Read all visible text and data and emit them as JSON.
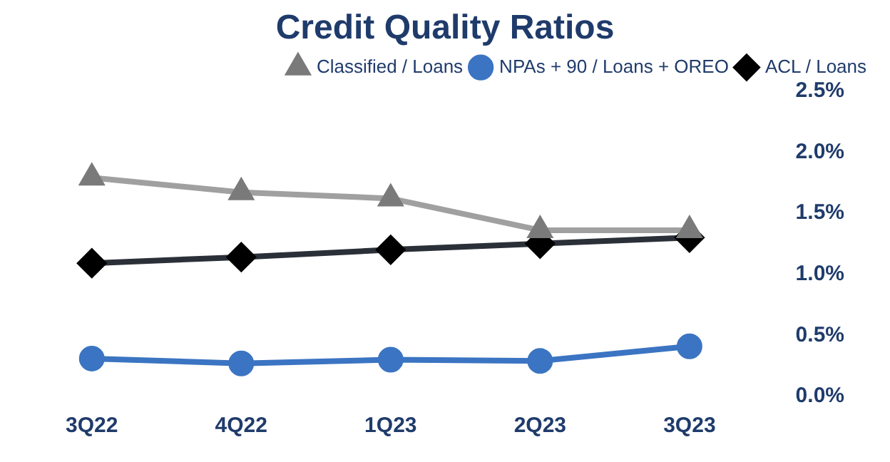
{
  "chart_data": {
    "type": "line",
    "title": "Credit Quality Ratios",
    "categories": [
      "3Q22",
      "4Q22",
      "1Q23",
      "2Q23",
      "3Q23"
    ],
    "series": [
      {
        "name": "Classified / Loans",
        "color": "#a0a0a0",
        "marker": "triangle",
        "values": [
          1.79,
          1.67,
          1.62,
          1.36,
          1.36
        ]
      },
      {
        "name": "NPAs + 90 / Loans + OREO",
        "color": "#3b74c2",
        "marker": "circle",
        "values": [
          0.31,
          0.27,
          0.3,
          0.29,
          0.41
        ]
      },
      {
        "name": "ACL / Loans",
        "color": "#2b3038",
        "marker": "diamond",
        "values": [
          1.09,
          1.14,
          1.2,
          1.25,
          1.3
        ]
      }
    ],
    "ylim": [
      0,
      2.5
    ],
    "yticks": [
      {
        "value": 0,
        "label": "0.0%"
      },
      {
        "value": 0.5,
        "label": "0.5%"
      },
      {
        "value": 1,
        "label": "1.0%"
      },
      {
        "value": 1.5,
        "label": "1.5%"
      },
      {
        "value": 2,
        "label": "2.0%"
      },
      {
        "value": 2.5,
        "label": "2.5%"
      }
    ],
    "grid": false,
    "legend": "top right",
    "line_style": "solid"
  }
}
